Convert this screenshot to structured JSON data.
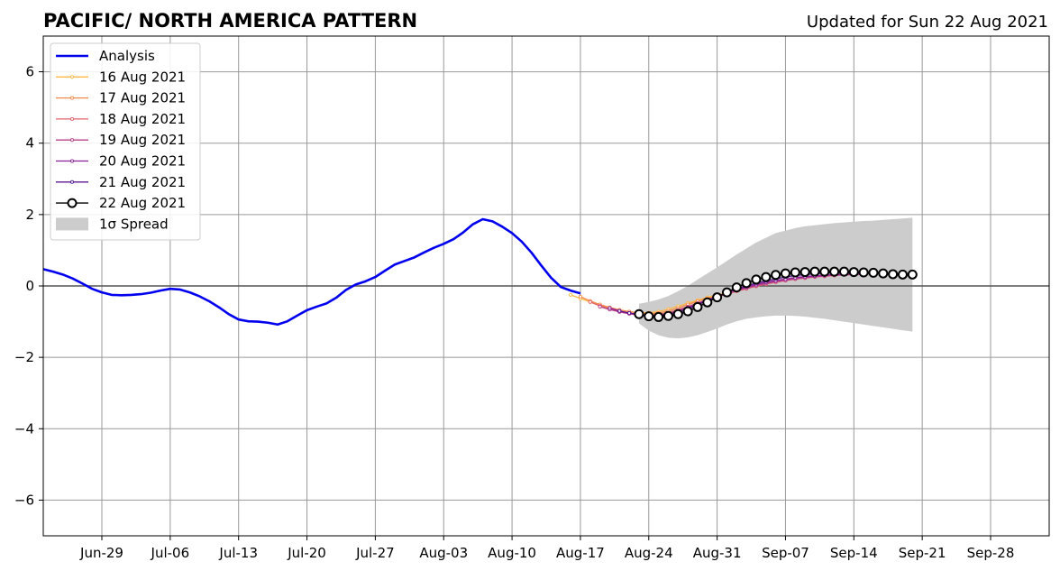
{
  "chart_data": {
    "type": "line",
    "title": "PACIFIC/ NORTH AMERICA PATTERN",
    "subtitle": "Updated for Sun 22 Aug 2021",
    "xlabel": "",
    "ylabel": "",
    "ylim": [
      -7,
      7
    ],
    "yticks": [
      -6,
      -4,
      -2,
      0,
      2,
      4,
      6
    ],
    "ytick_labels": [
      "−6",
      "−4",
      "−2",
      "0",
      "2",
      "4",
      "6"
    ],
    "xlim": [
      "2021-06-23",
      "2021-10-04"
    ],
    "xticks": [
      "2021-06-29",
      "2021-07-06",
      "2021-07-13",
      "2021-07-20",
      "2021-07-27",
      "2021-08-03",
      "2021-08-10",
      "2021-08-17",
      "2021-08-24",
      "2021-08-31",
      "2021-09-07",
      "2021-09-14",
      "2021-09-21",
      "2021-09-28"
    ],
    "xtick_labels": [
      "Jun-29",
      "Jul-06",
      "Jul-13",
      "Jul-20",
      "Jul-27",
      "Aug-03",
      "Aug-10",
      "Aug-17",
      "Aug-24",
      "Aug-31",
      "Sep-07",
      "Sep-14",
      "Sep-21",
      "Sep-28"
    ],
    "grid": true,
    "legend_position": "top-left",
    "legend": [
      "Analysis",
      "16 Aug 2021",
      "17 Aug 2021",
      "18 Aug 2021",
      "19 Aug 2021",
      "20 Aug 2021",
      "21 Aug 2021",
      "22 Aug 2021",
      "1σ Spread"
    ],
    "colors": {
      "analysis": "#0000ee",
      "spread": "#cccccc",
      "grid": "#999999",
      "zero_line": "#555555",
      "f16": "#fdb846",
      "f17": "#f58a4b",
      "f18": "#e0636b",
      "f19": "#b8408a",
      "f20": "#8b1f9a",
      "f21": "#5b178f",
      "f22": "#000000"
    },
    "analysis": {
      "x": [
        "2021-06-23",
        "2021-06-24",
        "2021-06-25",
        "2021-06-26",
        "2021-06-27",
        "2021-06-28",
        "2021-06-29",
        "2021-06-30",
        "2021-07-01",
        "2021-07-02",
        "2021-07-03",
        "2021-07-04",
        "2021-07-05",
        "2021-07-06",
        "2021-07-07",
        "2021-07-08",
        "2021-07-09",
        "2021-07-10",
        "2021-07-11",
        "2021-07-12",
        "2021-07-13",
        "2021-07-14",
        "2021-07-15",
        "2021-07-16",
        "2021-07-17",
        "2021-07-18",
        "2021-07-19",
        "2021-07-20",
        "2021-07-21",
        "2021-07-22",
        "2021-07-23",
        "2021-07-24",
        "2021-07-25",
        "2021-07-26",
        "2021-07-27",
        "2021-07-28",
        "2021-07-29",
        "2021-07-30",
        "2021-07-31",
        "2021-08-01",
        "2021-08-02",
        "2021-08-03",
        "2021-08-04",
        "2021-08-05",
        "2021-08-06",
        "2021-08-07",
        "2021-08-08",
        "2021-08-09",
        "2021-08-10",
        "2021-08-11",
        "2021-08-12",
        "2021-08-13",
        "2021-08-14",
        "2021-08-15",
        "2021-08-16",
        "2021-08-17"
      ],
      "y": [
        0.47,
        0.4,
        0.32,
        0.21,
        0.07,
        -0.08,
        -0.18,
        -0.25,
        -0.26,
        -0.25,
        -0.23,
        -0.19,
        -0.13,
        -0.08,
        -0.1,
        -0.18,
        -0.29,
        -0.43,
        -0.6,
        -0.79,
        -0.94,
        -0.99,
        -1.0,
        -1.03,
        -1.08,
        -0.99,
        -0.83,
        -0.68,
        -0.58,
        -0.49,
        -0.33,
        -0.11,
        0.04,
        0.13,
        0.25,
        0.43,
        0.6,
        0.7,
        0.8,
        0.94,
        1.07,
        1.18,
        1.31,
        1.5,
        1.73,
        1.87,
        1.81,
        1.66,
        1.48,
        1.24,
        0.93,
        0.57,
        0.23,
        -0.03,
        -0.13,
        -0.21
      ]
    },
    "forecasts": [
      {
        "name": "16 Aug 2021",
        "colorKey": "f16",
        "x": [
          "2021-08-16",
          "2021-08-17",
          "2021-08-18",
          "2021-08-19",
          "2021-08-20",
          "2021-08-21",
          "2021-08-22",
          "2021-08-23",
          "2021-08-24",
          "2021-08-25",
          "2021-08-26",
          "2021-08-27",
          "2021-08-28",
          "2021-08-29",
          "2021-08-30",
          "2021-08-31",
          "2021-09-01",
          "2021-09-02",
          "2021-09-03",
          "2021-09-04",
          "2021-09-05",
          "2021-09-06",
          "2021-09-07",
          "2021-09-08",
          "2021-09-09",
          "2021-09-10",
          "2021-09-11",
          "2021-09-12",
          "2021-09-13"
        ],
        "y": [
          -0.25,
          -0.35,
          -0.45,
          -0.55,
          -0.62,
          -0.68,
          -0.72,
          -0.75,
          -0.75,
          -0.72,
          -0.65,
          -0.57,
          -0.48,
          -0.4,
          -0.32,
          -0.25,
          -0.18,
          -0.1,
          -0.04,
          0.03,
          0.09,
          0.14,
          0.19,
          0.22,
          0.25,
          0.28,
          0.3,
          0.32,
          0.33
        ]
      },
      {
        "name": "17 Aug 2021",
        "colorKey": "f17",
        "x": [
          "2021-08-17",
          "2021-08-18",
          "2021-08-19",
          "2021-08-20",
          "2021-08-21",
          "2021-08-22",
          "2021-08-23",
          "2021-08-24",
          "2021-08-25",
          "2021-08-26",
          "2021-08-27",
          "2021-08-28",
          "2021-08-29",
          "2021-08-30",
          "2021-08-31",
          "2021-09-01",
          "2021-09-02",
          "2021-09-03",
          "2021-09-04",
          "2021-09-05",
          "2021-09-06",
          "2021-09-07",
          "2021-09-08",
          "2021-09-09",
          "2021-09-10",
          "2021-09-11",
          "2021-09-12",
          "2021-09-13",
          "2021-09-14"
        ],
        "y": [
          -0.3,
          -0.42,
          -0.52,
          -0.6,
          -0.67,
          -0.72,
          -0.76,
          -0.78,
          -0.76,
          -0.7,
          -0.62,
          -0.52,
          -0.43,
          -0.35,
          -0.28,
          -0.2,
          -0.13,
          -0.06,
          0.01,
          0.07,
          0.12,
          0.17,
          0.21,
          0.24,
          0.27,
          0.29,
          0.31,
          0.32,
          0.33
        ]
      },
      {
        "name": "18 Aug 2021",
        "colorKey": "f18",
        "x": [
          "2021-08-18",
          "2021-08-19",
          "2021-08-20",
          "2021-08-21",
          "2021-08-22",
          "2021-08-23",
          "2021-08-24",
          "2021-08-25",
          "2021-08-26",
          "2021-08-27",
          "2021-08-28",
          "2021-08-29",
          "2021-08-30",
          "2021-08-31",
          "2021-09-01",
          "2021-09-02",
          "2021-09-03",
          "2021-09-04",
          "2021-09-05",
          "2021-09-06",
          "2021-09-07",
          "2021-09-08",
          "2021-09-09",
          "2021-09-10",
          "2021-09-11",
          "2021-09-12",
          "2021-09-13",
          "2021-09-14",
          "2021-09-15"
        ],
        "y": [
          -0.45,
          -0.56,
          -0.64,
          -0.71,
          -0.76,
          -0.8,
          -0.82,
          -0.8,
          -0.75,
          -0.67,
          -0.58,
          -0.48,
          -0.39,
          -0.31,
          -0.23,
          -0.15,
          -0.08,
          -0.01,
          0.05,
          0.1,
          0.15,
          0.19,
          0.22,
          0.25,
          0.27,
          0.29,
          0.31,
          0.32,
          0.33
        ]
      },
      {
        "name": "19 Aug 2021",
        "colorKey": "f19",
        "x": [
          "2021-08-19",
          "2021-08-20",
          "2021-08-21",
          "2021-08-22",
          "2021-08-23",
          "2021-08-24",
          "2021-08-25",
          "2021-08-26",
          "2021-08-27",
          "2021-08-28",
          "2021-08-29",
          "2021-08-30",
          "2021-08-31",
          "2021-09-01",
          "2021-09-02",
          "2021-09-03",
          "2021-09-04",
          "2021-09-05",
          "2021-09-06",
          "2021-09-07",
          "2021-09-08",
          "2021-09-09",
          "2021-09-10",
          "2021-09-11",
          "2021-09-12",
          "2021-09-13",
          "2021-09-14",
          "2021-09-15",
          "2021-09-16"
        ],
        "y": [
          -0.58,
          -0.66,
          -0.73,
          -0.78,
          -0.82,
          -0.84,
          -0.82,
          -0.77,
          -0.69,
          -0.59,
          -0.49,
          -0.39,
          -0.3,
          -0.21,
          -0.13,
          -0.06,
          0.01,
          0.07,
          0.12,
          0.16,
          0.2,
          0.23,
          0.26,
          0.28,
          0.3,
          0.31,
          0.32,
          0.33,
          0.34
        ]
      },
      {
        "name": "20 Aug 2021",
        "colorKey": "f20",
        "x": [
          "2021-08-20",
          "2021-08-21",
          "2021-08-22",
          "2021-08-23",
          "2021-08-24",
          "2021-08-25",
          "2021-08-26",
          "2021-08-27",
          "2021-08-28",
          "2021-08-29",
          "2021-08-30",
          "2021-08-31",
          "2021-09-01",
          "2021-09-02",
          "2021-09-03",
          "2021-09-04",
          "2021-09-05",
          "2021-09-06",
          "2021-09-07",
          "2021-09-08",
          "2021-09-09",
          "2021-09-10",
          "2021-09-11",
          "2021-09-12",
          "2021-09-13",
          "2021-09-14",
          "2021-09-15",
          "2021-09-16",
          "2021-09-17"
        ],
        "y": [
          -0.62,
          -0.7,
          -0.76,
          -0.8,
          -0.83,
          -0.83,
          -0.79,
          -0.71,
          -0.61,
          -0.5,
          -0.39,
          -0.29,
          -0.19,
          -0.1,
          -0.03,
          0.04,
          0.1,
          0.15,
          0.19,
          0.23,
          0.26,
          0.28,
          0.3,
          0.32,
          0.33,
          0.34,
          0.34,
          0.35,
          0.35
        ]
      },
      {
        "name": "21 Aug 2021",
        "colorKey": "f21",
        "x": [
          "2021-08-21",
          "2021-08-22",
          "2021-08-23",
          "2021-08-24",
          "2021-08-25",
          "2021-08-26",
          "2021-08-27",
          "2021-08-28",
          "2021-08-29",
          "2021-08-30",
          "2021-08-31",
          "2021-09-01",
          "2021-09-02",
          "2021-09-03",
          "2021-09-04",
          "2021-09-05",
          "2021-09-06",
          "2021-09-07",
          "2021-09-08",
          "2021-09-09",
          "2021-09-10",
          "2021-09-11",
          "2021-09-12",
          "2021-09-13",
          "2021-09-14",
          "2021-09-15",
          "2021-09-16",
          "2021-09-17",
          "2021-09-18"
        ],
        "y": [
          -0.7,
          -0.76,
          -0.8,
          -0.84,
          -0.85,
          -0.82,
          -0.75,
          -0.65,
          -0.53,
          -0.41,
          -0.3,
          -0.19,
          -0.09,
          0.0,
          0.08,
          0.14,
          0.2,
          0.25,
          0.29,
          0.32,
          0.34,
          0.36,
          0.37,
          0.37,
          0.37,
          0.36,
          0.35,
          0.35,
          0.34
        ]
      },
      {
        "name": "22 Aug 2021",
        "colorKey": "f22",
        "x": [
          "2021-08-23",
          "2021-08-24",
          "2021-08-25",
          "2021-08-26",
          "2021-08-27",
          "2021-08-28",
          "2021-08-29",
          "2021-08-30",
          "2021-08-31",
          "2021-09-01",
          "2021-09-02",
          "2021-09-03",
          "2021-09-04",
          "2021-09-05",
          "2021-09-06",
          "2021-09-07",
          "2021-09-08",
          "2021-09-09",
          "2021-09-10",
          "2021-09-11",
          "2021-09-12",
          "2021-09-13",
          "2021-09-14",
          "2021-09-15",
          "2021-09-16",
          "2021-09-17",
          "2021-09-18",
          "2021-09-19",
          "2021-09-20"
        ],
        "y": [
          -0.79,
          -0.85,
          -0.87,
          -0.84,
          -0.79,
          -0.71,
          -0.59,
          -0.46,
          -0.32,
          -0.18,
          -0.04,
          0.08,
          0.18,
          0.25,
          0.31,
          0.35,
          0.38,
          0.39,
          0.4,
          0.4,
          0.4,
          0.4,
          0.39,
          0.38,
          0.37,
          0.35,
          0.33,
          0.32,
          0.32
        ]
      }
    ],
    "spread": {
      "x": [
        "2021-08-23",
        "2021-08-24",
        "2021-08-25",
        "2021-08-26",
        "2021-08-27",
        "2021-08-28",
        "2021-08-29",
        "2021-08-30",
        "2021-08-31",
        "2021-09-01",
        "2021-09-02",
        "2021-09-03",
        "2021-09-04",
        "2021-09-05",
        "2021-09-06",
        "2021-09-07",
        "2021-09-08",
        "2021-09-09",
        "2021-09-10",
        "2021-09-11",
        "2021-09-12",
        "2021-09-13",
        "2021-09-14",
        "2021-09-15",
        "2021-09-16",
        "2021-09-17",
        "2021-09-18",
        "2021-09-19",
        "2021-09-20"
      ],
      "upper": [
        -0.5,
        -0.45,
        -0.38,
        -0.28,
        -0.15,
        0.0,
        0.18,
        0.35,
        0.52,
        0.7,
        0.88,
        1.05,
        1.22,
        1.35,
        1.48,
        1.55,
        1.62,
        1.67,
        1.7,
        1.73,
        1.76,
        1.78,
        1.8,
        1.82,
        1.83,
        1.85,
        1.87,
        1.89,
        1.91
      ],
      "lower": [
        -1.05,
        -1.25,
        -1.38,
        -1.45,
        -1.47,
        -1.44,
        -1.38,
        -1.29,
        -1.19,
        -1.08,
        -0.99,
        -0.92,
        -0.88,
        -0.85,
        -0.83,
        -0.83,
        -0.84,
        -0.86,
        -0.89,
        -0.92,
        -0.96,
        -1.0,
        -1.04,
        -1.08,
        -1.12,
        -1.16,
        -1.2,
        -1.24,
        -1.28
      ]
    }
  }
}
